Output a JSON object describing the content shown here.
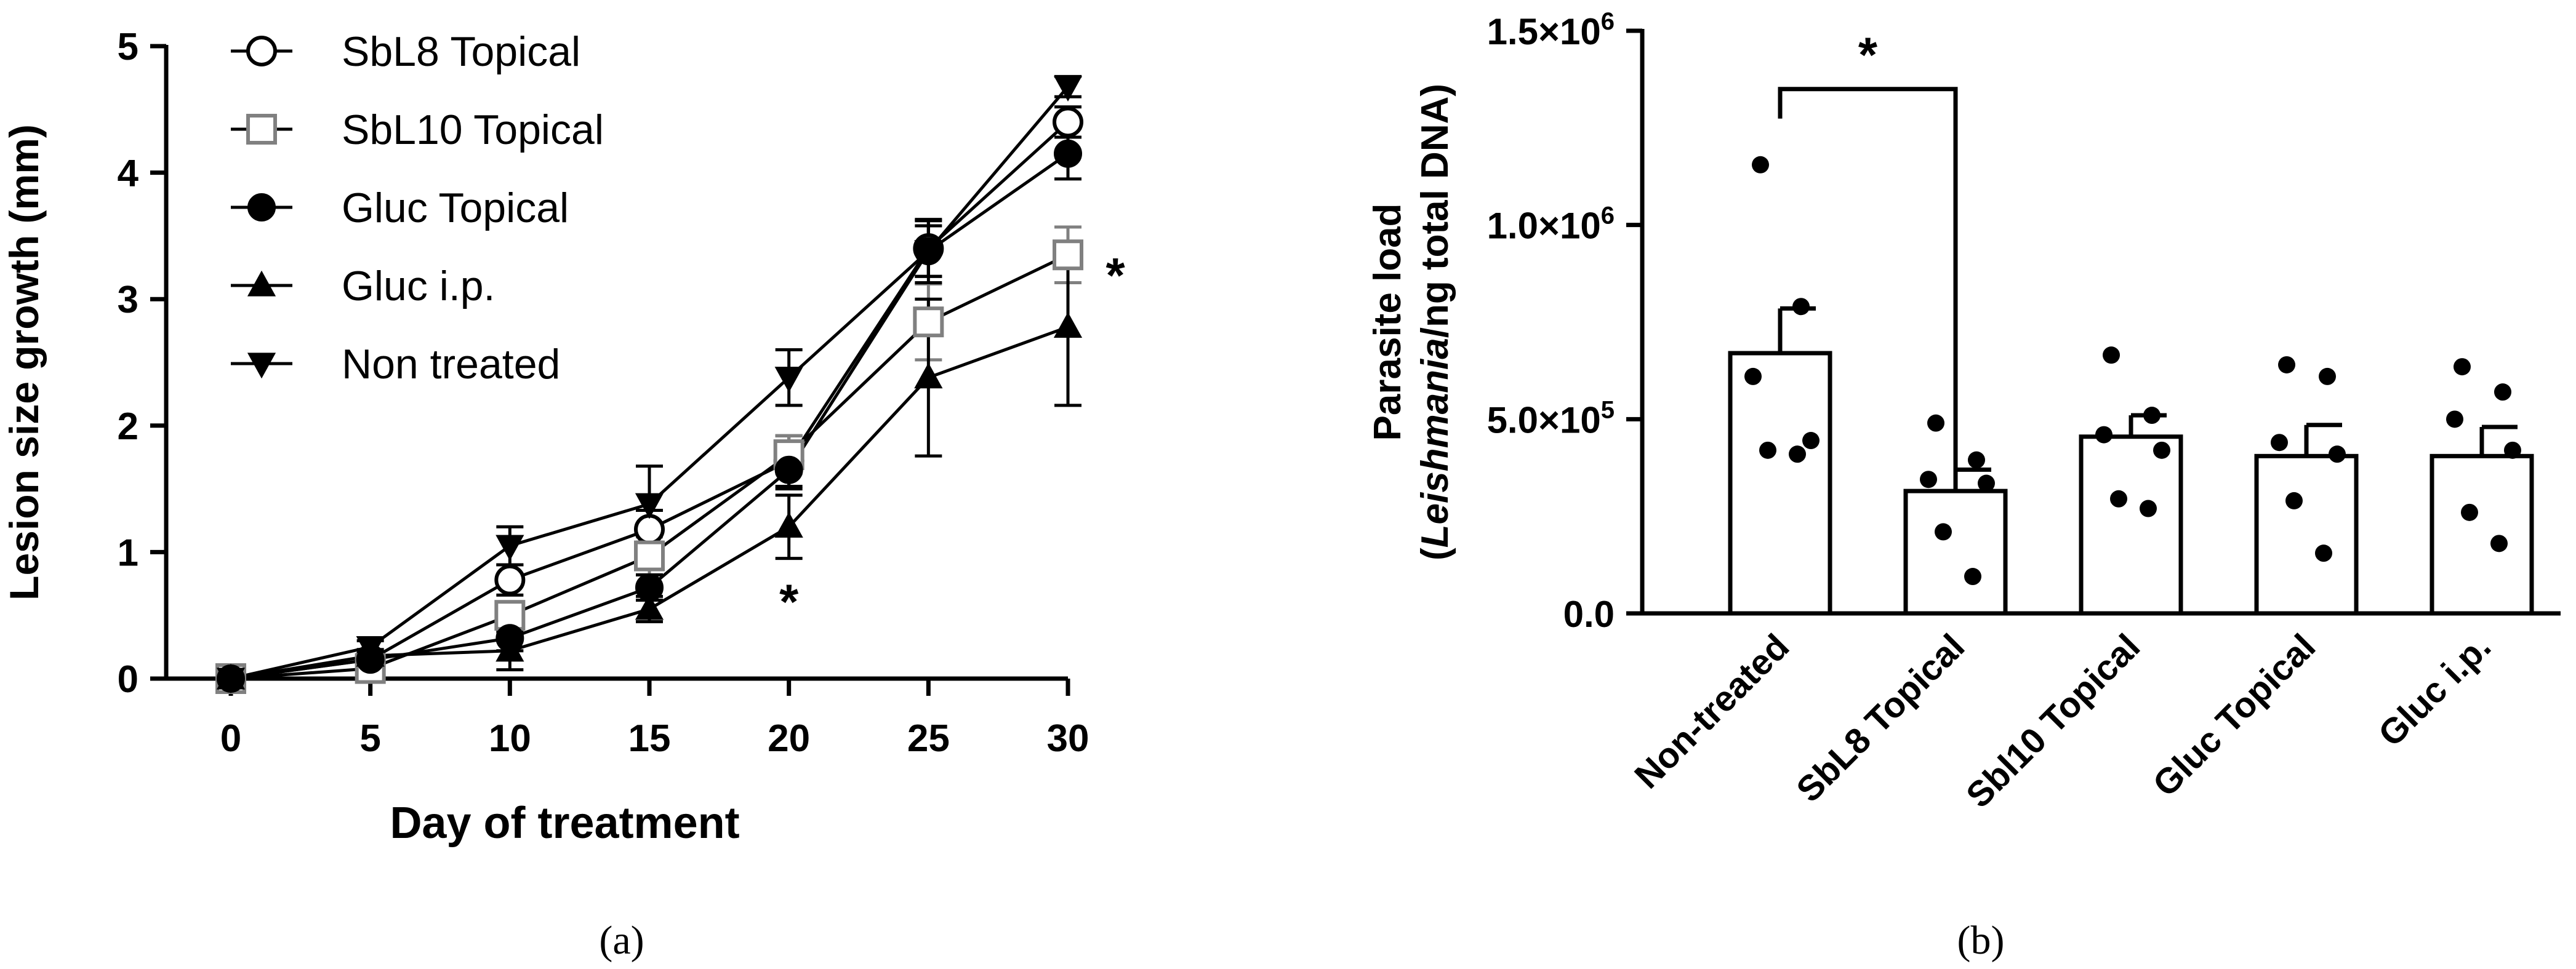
{
  "chart_data": [
    {
      "type": "line",
      "panel_label": "(a)",
      "xlabel": "Day of treatment",
      "ylabel": "Lesion size growth (mm)",
      "xlim": [
        0,
        30
      ],
      "ylim": [
        0,
        5
      ],
      "xticks": [
        0,
        5,
        10,
        15,
        20,
        25,
        30
      ],
      "yticks": [
        0,
        1,
        2,
        3,
        4,
        5
      ],
      "x": [
        0,
        5,
        10,
        15,
        20,
        25,
        30
      ],
      "legend_position": "top-left",
      "series": [
        {
          "name": "SbL8 Topical",
          "marker": "circle-open",
          "color": "#000000",
          "values": [
            0,
            0.15,
            0.78,
            1.18,
            1.72,
            3.4,
            4.4
          ],
          "errors": [
            0,
            0.05,
            0.12,
            0.15,
            0.2,
            0.22,
            0.12
          ]
        },
        {
          "name": "SbL10 Topical",
          "marker": "square-open",
          "color": "#808080",
          "values": [
            0,
            0.08,
            0.5,
            0.97,
            1.77,
            2.82,
            3.35
          ],
          "errors": [
            0,
            0.05,
            0.1,
            0.15,
            0.15,
            0.3,
            0.22
          ]
        },
        {
          "name": "Gluc Topical",
          "marker": "circle-filled",
          "color": "#000000",
          "values": [
            0,
            0.15,
            0.32,
            0.72,
            1.65,
            3.38,
            4.15
          ],
          "errors": [
            0,
            0.05,
            0.1,
            0.1,
            0.15,
            0.2,
            0.2
          ]
        },
        {
          "name": "Gluc i.p.",
          "marker": "triangle-up-filled",
          "color": "#000000",
          "values": [
            0,
            0.18,
            0.22,
            0.55,
            1.2,
            2.38,
            2.78
          ],
          "errors": [
            0,
            0.05,
            0.15,
            0.1,
            0.25,
            0.62,
            0.62
          ]
        },
        {
          "name": "Non treated",
          "marker": "triangle-down-filled",
          "color": "#000000",
          "values": [
            0,
            0.25,
            1.05,
            1.38,
            2.38,
            3.38,
            4.68
          ],
          "errors": [
            0,
            0.05,
            0.15,
            0.3,
            0.22,
            0.25,
            0.08
          ]
        }
      ],
      "annotations": [
        {
          "text": "*",
          "x": 20,
          "y": 0.62
        },
        {
          "text": "*",
          "x": 31.7,
          "y": 3.2
        }
      ]
    },
    {
      "type": "bar",
      "panel_label": "(b)",
      "xlabel": "",
      "ylabel_line1": "Parasite load",
      "ylabel_line2_italic": "Leishmania",
      "ylabel_line2_pre": "(",
      "ylabel_line2_post": "/ng total DNA)",
      "ylim": [
        0,
        1500000
      ],
      "yticks": [
        {
          "value": 0,
          "label": "0.0"
        },
        {
          "value": 500000,
          "label_base": "5.0×10",
          "label_exp": "5"
        },
        {
          "value": 1000000,
          "label_base": "1.0×10",
          "label_exp": "6"
        },
        {
          "value": 1500000,
          "label_base": "1.5×10",
          "label_exp": "6"
        }
      ],
      "categories": [
        "Non-treated",
        "SbL8 Topical",
        "Sbl10 Topical",
        "Gluc Topical",
        "Gluc i.p."
      ],
      "values": [
        670000,
        315000,
        455000,
        405000,
        405000
      ],
      "errors": [
        115000,
        55000,
        55000,
        80000,
        75000
      ],
      "points": [
        [
          1155000,
          790000,
          610000,
          445000,
          420000,
          410000
        ],
        [
          490000,
          395000,
          345000,
          335000,
          210000,
          95000
        ],
        [
          665000,
          510000,
          460000,
          420000,
          295000,
          270000
        ],
        [
          640000,
          610000,
          440000,
          410000,
          290000,
          155000
        ],
        [
          635000,
          570000,
          500000,
          420000,
          260000,
          180000
        ]
      ],
      "significance": {
        "text": "*",
        "from": 0,
        "to": 1,
        "y": 1350000
      }
    }
  ]
}
